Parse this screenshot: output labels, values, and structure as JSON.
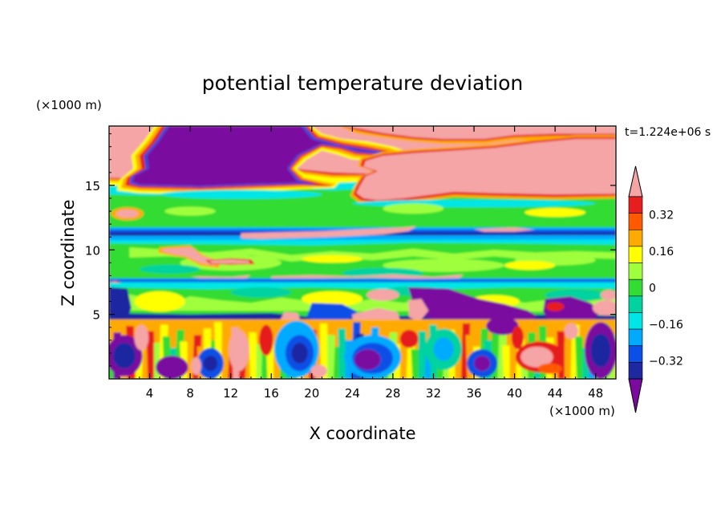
{
  "chart_data": {
    "type": "heatmap",
    "title": "potential temperature deviation",
    "xlabel": "X coordinate",
    "ylabel": "Z coordinate",
    "x_unit": "(×1000 m)",
    "y_unit": "(×1000 m)",
    "time_label": "t=1.224e+06 s",
    "xlim": [
      0,
      50
    ],
    "ylim": [
      0,
      19.6
    ],
    "x_ticks": [
      4,
      8,
      12,
      16,
      20,
      24,
      28,
      32,
      36,
      40,
      44,
      48
    ],
    "y_ticks": [
      5,
      10,
      15
    ],
    "colorbar": {
      "tick_labels": [
        "0.32",
        "0.16",
        "0",
        "-0.16",
        "-0.32"
      ],
      "tick_values": [
        0.32,
        0.16,
        0,
        -0.16,
        -0.32
      ],
      "levels": [
        -0.4,
        -0.32,
        -0.24,
        -0.16,
        -0.08,
        0,
        0.08,
        0.16,
        0.24,
        0.32,
        0.4
      ],
      "colors": [
        "#7a0aa0",
        "#1e28a0",
        "#0a50e6",
        "#00aaff",
        "#00e6e6",
        "#00d2a0",
        "#32dc32",
        "#a0ff3c",
        "#ffff00",
        "#ffaa00",
        "#ff5a00",
        "#e61e1e",
        "#f5a5a5"
      ],
      "under_color": "#7a0aa0",
      "over_color": "#f5a5a5"
    }
  }
}
